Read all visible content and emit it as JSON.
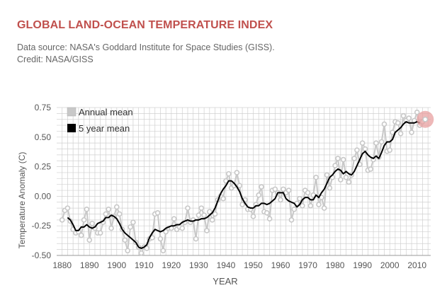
{
  "header": {
    "title": "GLOBAL LAND-OCEAN TEMPERATURE INDEX",
    "source": "Data source: NASA's Goddard Institute for Space Studies (GISS).",
    "credit": "Credit: NASA/GISS"
  },
  "colors": {
    "title": "#c0504d",
    "annual": "#c8c8c8",
    "five_year": "#000000",
    "highlight": "#e8a0a0",
    "grid": "#d0d0d0",
    "axis_text": "#555555"
  },
  "chart_data": {
    "type": "line",
    "xlabel": "YEAR",
    "ylabel": "Temperature Anomaly (C)",
    "xlim": [
      1878,
      2015
    ],
    "ylim": [
      -0.5,
      0.75
    ],
    "grid": true,
    "legend_position": "top-left",
    "x_ticks": [
      "1880",
      "1890",
      "1900",
      "1910",
      "1920",
      "1930",
      "1940",
      "1950",
      "1960",
      "1970",
      "1980",
      "1990",
      "2000",
      "2010"
    ],
    "y_ticks": [
      "0.75",
      "0.50",
      "0.25",
      "0.00",
      "-0.25",
      "-0.50"
    ],
    "series": [
      {
        "name": "Annual mean",
        "x": [
          1880,
          1881,
          1882,
          1883,
          1884,
          1885,
          1886,
          1887,
          1888,
          1889,
          1890,
          1891,
          1892,
          1893,
          1894,
          1895,
          1896,
          1897,
          1898,
          1899,
          1900,
          1901,
          1902,
          1903,
          1904,
          1905,
          1906,
          1907,
          1908,
          1909,
          1910,
          1911,
          1912,
          1913,
          1914,
          1915,
          1916,
          1917,
          1918,
          1919,
          1920,
          1921,
          1922,
          1923,
          1924,
          1925,
          1926,
          1927,
          1928,
          1929,
          1930,
          1931,
          1932,
          1933,
          1934,
          1935,
          1936,
          1937,
          1938,
          1939,
          1940,
          1941,
          1942,
          1943,
          1944,
          1945,
          1946,
          1947,
          1948,
          1949,
          1950,
          1951,
          1952,
          1953,
          1954,
          1955,
          1956,
          1957,
          1958,
          1959,
          1960,
          1961,
          1962,
          1963,
          1964,
          1965,
          1966,
          1967,
          1968,
          1969,
          1970,
          1971,
          1972,
          1973,
          1974,
          1975,
          1976,
          1977,
          1978,
          1979,
          1980,
          1981,
          1982,
          1983,
          1984,
          1985,
          1986,
          1987,
          1988,
          1989,
          1990,
          1991,
          1992,
          1993,
          1994,
          1995,
          1996,
          1997,
          1998,
          1999,
          2000,
          2001,
          2002,
          2003,
          2004,
          2005,
          2006,
          2007,
          2008,
          2009,
          2010,
          2011,
          2012,
          2013
        ],
        "values": [
          -0.2,
          -0.12,
          -0.1,
          -0.21,
          -0.28,
          -0.31,
          -0.3,
          -0.33,
          -0.2,
          -0.11,
          -0.37,
          -0.23,
          -0.27,
          -0.31,
          -0.31,
          -0.22,
          -0.15,
          -0.11,
          -0.27,
          -0.17,
          -0.09,
          -0.15,
          -0.28,
          -0.37,
          -0.46,
          -0.26,
          -0.22,
          -0.39,
          -0.43,
          -0.48,
          -0.43,
          -0.44,
          -0.36,
          -0.35,
          -0.15,
          -0.14,
          -0.36,
          -0.46,
          -0.3,
          -0.27,
          -0.27,
          -0.19,
          -0.28,
          -0.26,
          -0.27,
          -0.22,
          -0.1,
          -0.22,
          -0.2,
          -0.36,
          -0.16,
          -0.1,
          -0.16,
          -0.29,
          -0.13,
          -0.2,
          -0.15,
          -0.03,
          -0.0,
          -0.02,
          0.13,
          0.19,
          0.07,
          0.09,
          0.2,
          0.09,
          -0.07,
          -0.03,
          -0.11,
          -0.11,
          -0.17,
          -0.07,
          0.01,
          0.08,
          -0.13,
          -0.14,
          -0.19,
          0.05,
          0.06,
          0.03,
          -0.03,
          0.06,
          0.03,
          0.05,
          -0.2,
          -0.11,
          -0.06,
          -0.02,
          -0.08,
          0.05,
          0.03,
          -0.08,
          0.01,
          0.16,
          -0.07,
          -0.01,
          -0.1,
          0.18,
          0.07,
          0.16,
          0.26,
          0.32,
          0.14,
          0.31,
          0.16,
          0.12,
          0.18,
          0.32,
          0.39,
          0.27,
          0.45,
          0.4,
          0.22,
          0.23,
          0.31,
          0.45,
          0.33,
          0.46,
          0.61,
          0.38,
          0.39,
          0.54,
          0.63,
          0.62,
          0.53,
          0.68,
          0.64,
          0.66,
          0.54,
          0.64,
          0.71,
          0.6,
          0.63,
          0.65
        ]
      },
      {
        "name": "5 year mean",
        "x": [
          1882,
          1883,
          1884,
          1885,
          1886,
          1887,
          1888,
          1889,
          1890,
          1891,
          1892,
          1893,
          1894,
          1895,
          1896,
          1897,
          1898,
          1899,
          1900,
          1901,
          1902,
          1903,
          1904,
          1905,
          1906,
          1907,
          1908,
          1909,
          1910,
          1911,
          1912,
          1913,
          1914,
          1915,
          1916,
          1917,
          1918,
          1919,
          1920,
          1921,
          1922,
          1923,
          1924,
          1925,
          1926,
          1927,
          1928,
          1929,
          1930,
          1931,
          1932,
          1933,
          1934,
          1935,
          1936,
          1937,
          1938,
          1939,
          1940,
          1941,
          1942,
          1943,
          1944,
          1945,
          1946,
          1947,
          1948,
          1949,
          1950,
          1951,
          1952,
          1953,
          1954,
          1955,
          1956,
          1957,
          1958,
          1959,
          1960,
          1961,
          1962,
          1963,
          1964,
          1965,
          1966,
          1967,
          1968,
          1969,
          1970,
          1971,
          1972,
          1973,
          1974,
          1975,
          1976,
          1977,
          1978,
          1979,
          1980,
          1981,
          1982,
          1983,
          1984,
          1985,
          1986,
          1987,
          1988,
          1989,
          1990,
          1991,
          1992,
          1993,
          1994,
          1995,
          1996,
          1997,
          1998,
          1999,
          2000,
          2001,
          2002,
          2003,
          2004,
          2005,
          2006,
          2007,
          2008,
          2009,
          2010,
          2011
        ],
        "values": [
          -0.18,
          -0.2,
          -0.24,
          -0.29,
          -0.29,
          -0.26,
          -0.26,
          -0.24,
          -0.26,
          -0.27,
          -0.26,
          -0.23,
          -0.22,
          -0.21,
          -0.18,
          -0.18,
          -0.16,
          -0.17,
          -0.19,
          -0.23,
          -0.28,
          -0.31,
          -0.33,
          -0.35,
          -0.37,
          -0.39,
          -0.43,
          -0.44,
          -0.43,
          -0.41,
          -0.35,
          -0.31,
          -0.28,
          -0.29,
          -0.3,
          -0.29,
          -0.27,
          -0.26,
          -0.25,
          -0.25,
          -0.24,
          -0.24,
          -0.22,
          -0.21,
          -0.2,
          -0.21,
          -0.21,
          -0.2,
          -0.2,
          -0.19,
          -0.19,
          -0.18,
          -0.16,
          -0.14,
          -0.1,
          -0.04,
          0.02,
          0.06,
          0.09,
          0.13,
          0.13,
          0.11,
          0.08,
          0.04,
          -0.02,
          -0.06,
          -0.09,
          -0.1,
          -0.1,
          -0.08,
          -0.08,
          -0.06,
          -0.06,
          -0.07,
          -0.06,
          -0.04,
          -0.02,
          0.03,
          0.03,
          0.03,
          -0.02,
          -0.04,
          -0.05,
          -0.06,
          -0.09,
          -0.07,
          -0.03,
          -0.01,
          -0.01,
          -0.03,
          -0.03,
          0.01,
          -0.01,
          0.03,
          0.06,
          0.11,
          0.16,
          0.18,
          0.21,
          0.23,
          0.22,
          0.19,
          0.21,
          0.19,
          0.18,
          0.21,
          0.26,
          0.31,
          0.36,
          0.38,
          0.35,
          0.33,
          0.32,
          0.34,
          0.32,
          0.37,
          0.43,
          0.46,
          0.46,
          0.48,
          0.54,
          0.56,
          0.58,
          0.61,
          0.63,
          0.62,
          0.62,
          0.62,
          0.63,
          0.62
        ]
      }
    ],
    "highlight": {
      "x": 2013,
      "y": 0.65
    }
  }
}
